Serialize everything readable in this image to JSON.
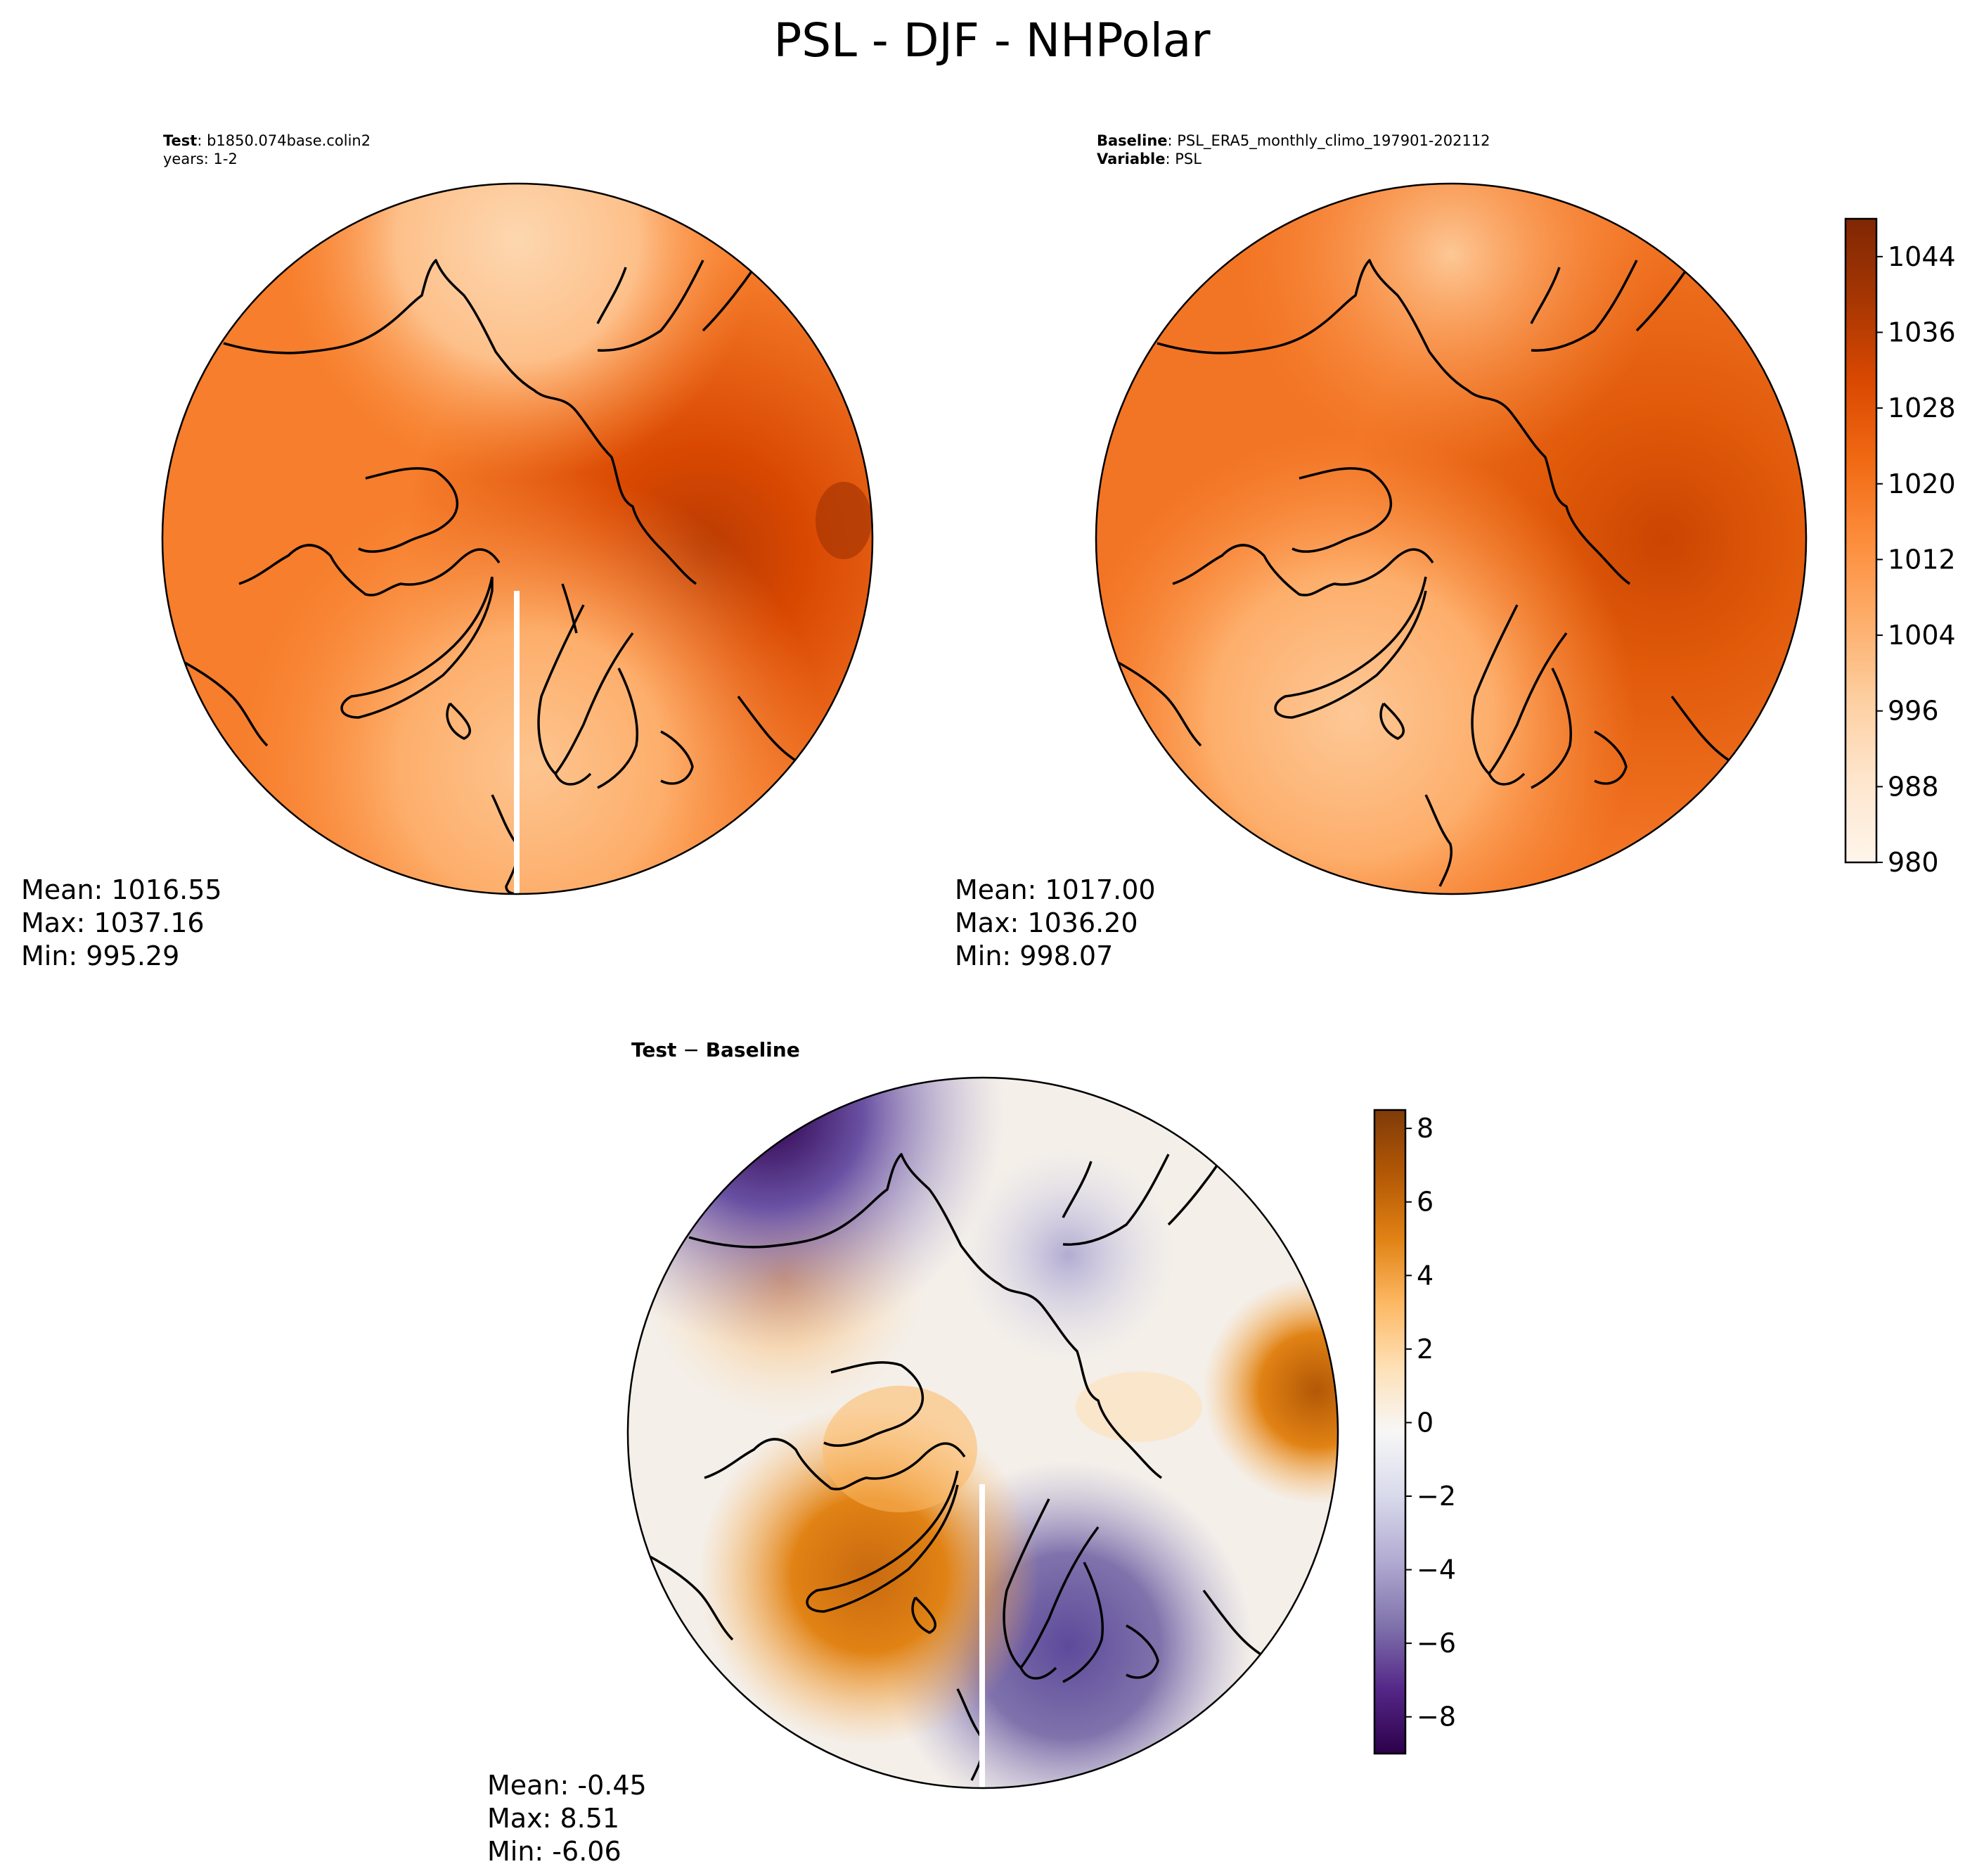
{
  "figure": {
    "title": "PSL - DJF - NHPolar"
  },
  "panels": {
    "test": {
      "header": {
        "line1_bold": "Test",
        "line1_rest": ": b1850.074base.colin2",
        "line2": "years: 1-2"
      },
      "stats": {
        "mean": "Mean: 1016.55",
        "max": "Max: 1037.16",
        "min": "Min: 995.29"
      }
    },
    "baseline": {
      "header": {
        "line1_bold": "Baseline",
        "line1_rest": ": PSL_ERA5_monthly_climo_197901-202112",
        "line2_bold": "Variable",
        "line2_rest": ": PSL"
      },
      "stats": {
        "mean": "Mean: 1017.00",
        "max": "Max: 1036.20",
        "min": "Min: 998.07"
      }
    },
    "diff": {
      "header": {
        "title_bold_1": "Test",
        "minus": " − ",
        "title_bold_2": "Baseline"
      },
      "stats": {
        "mean": "Mean: -0.45",
        "max": "Max:  8.51",
        "min": "Min: -6.06"
      }
    }
  },
  "colorbars": {
    "main": {
      "range": [
        980,
        1048
      ],
      "tick_labels": [
        "1044",
        "1036",
        "1028",
        "1020",
        "1012",
        "1004",
        "996",
        "988",
        "980"
      ],
      "colormap": "Oranges",
      "stops": [
        "#fff5eb",
        "#fee6ce",
        "#fdd0a2",
        "#fdae6b",
        "#fd8d3c",
        "#f16913",
        "#d94801",
        "#a63603",
        "#7f2704"
      ]
    },
    "diff": {
      "range": [
        -9,
        8.5
      ],
      "tick_labels": [
        "8",
        "6",
        "4",
        "2",
        "0",
        "−2",
        "−4",
        "−6",
        "−8"
      ],
      "colormap": "PuOr_r",
      "stops": [
        "#2d004b",
        "#542788",
        "#8073ac",
        "#b2abd2",
        "#d8daeb",
        "#f7f7f7",
        "#fee0b6",
        "#fdb863",
        "#e08214",
        "#b35806",
        "#7f3b08"
      ]
    }
  }
}
